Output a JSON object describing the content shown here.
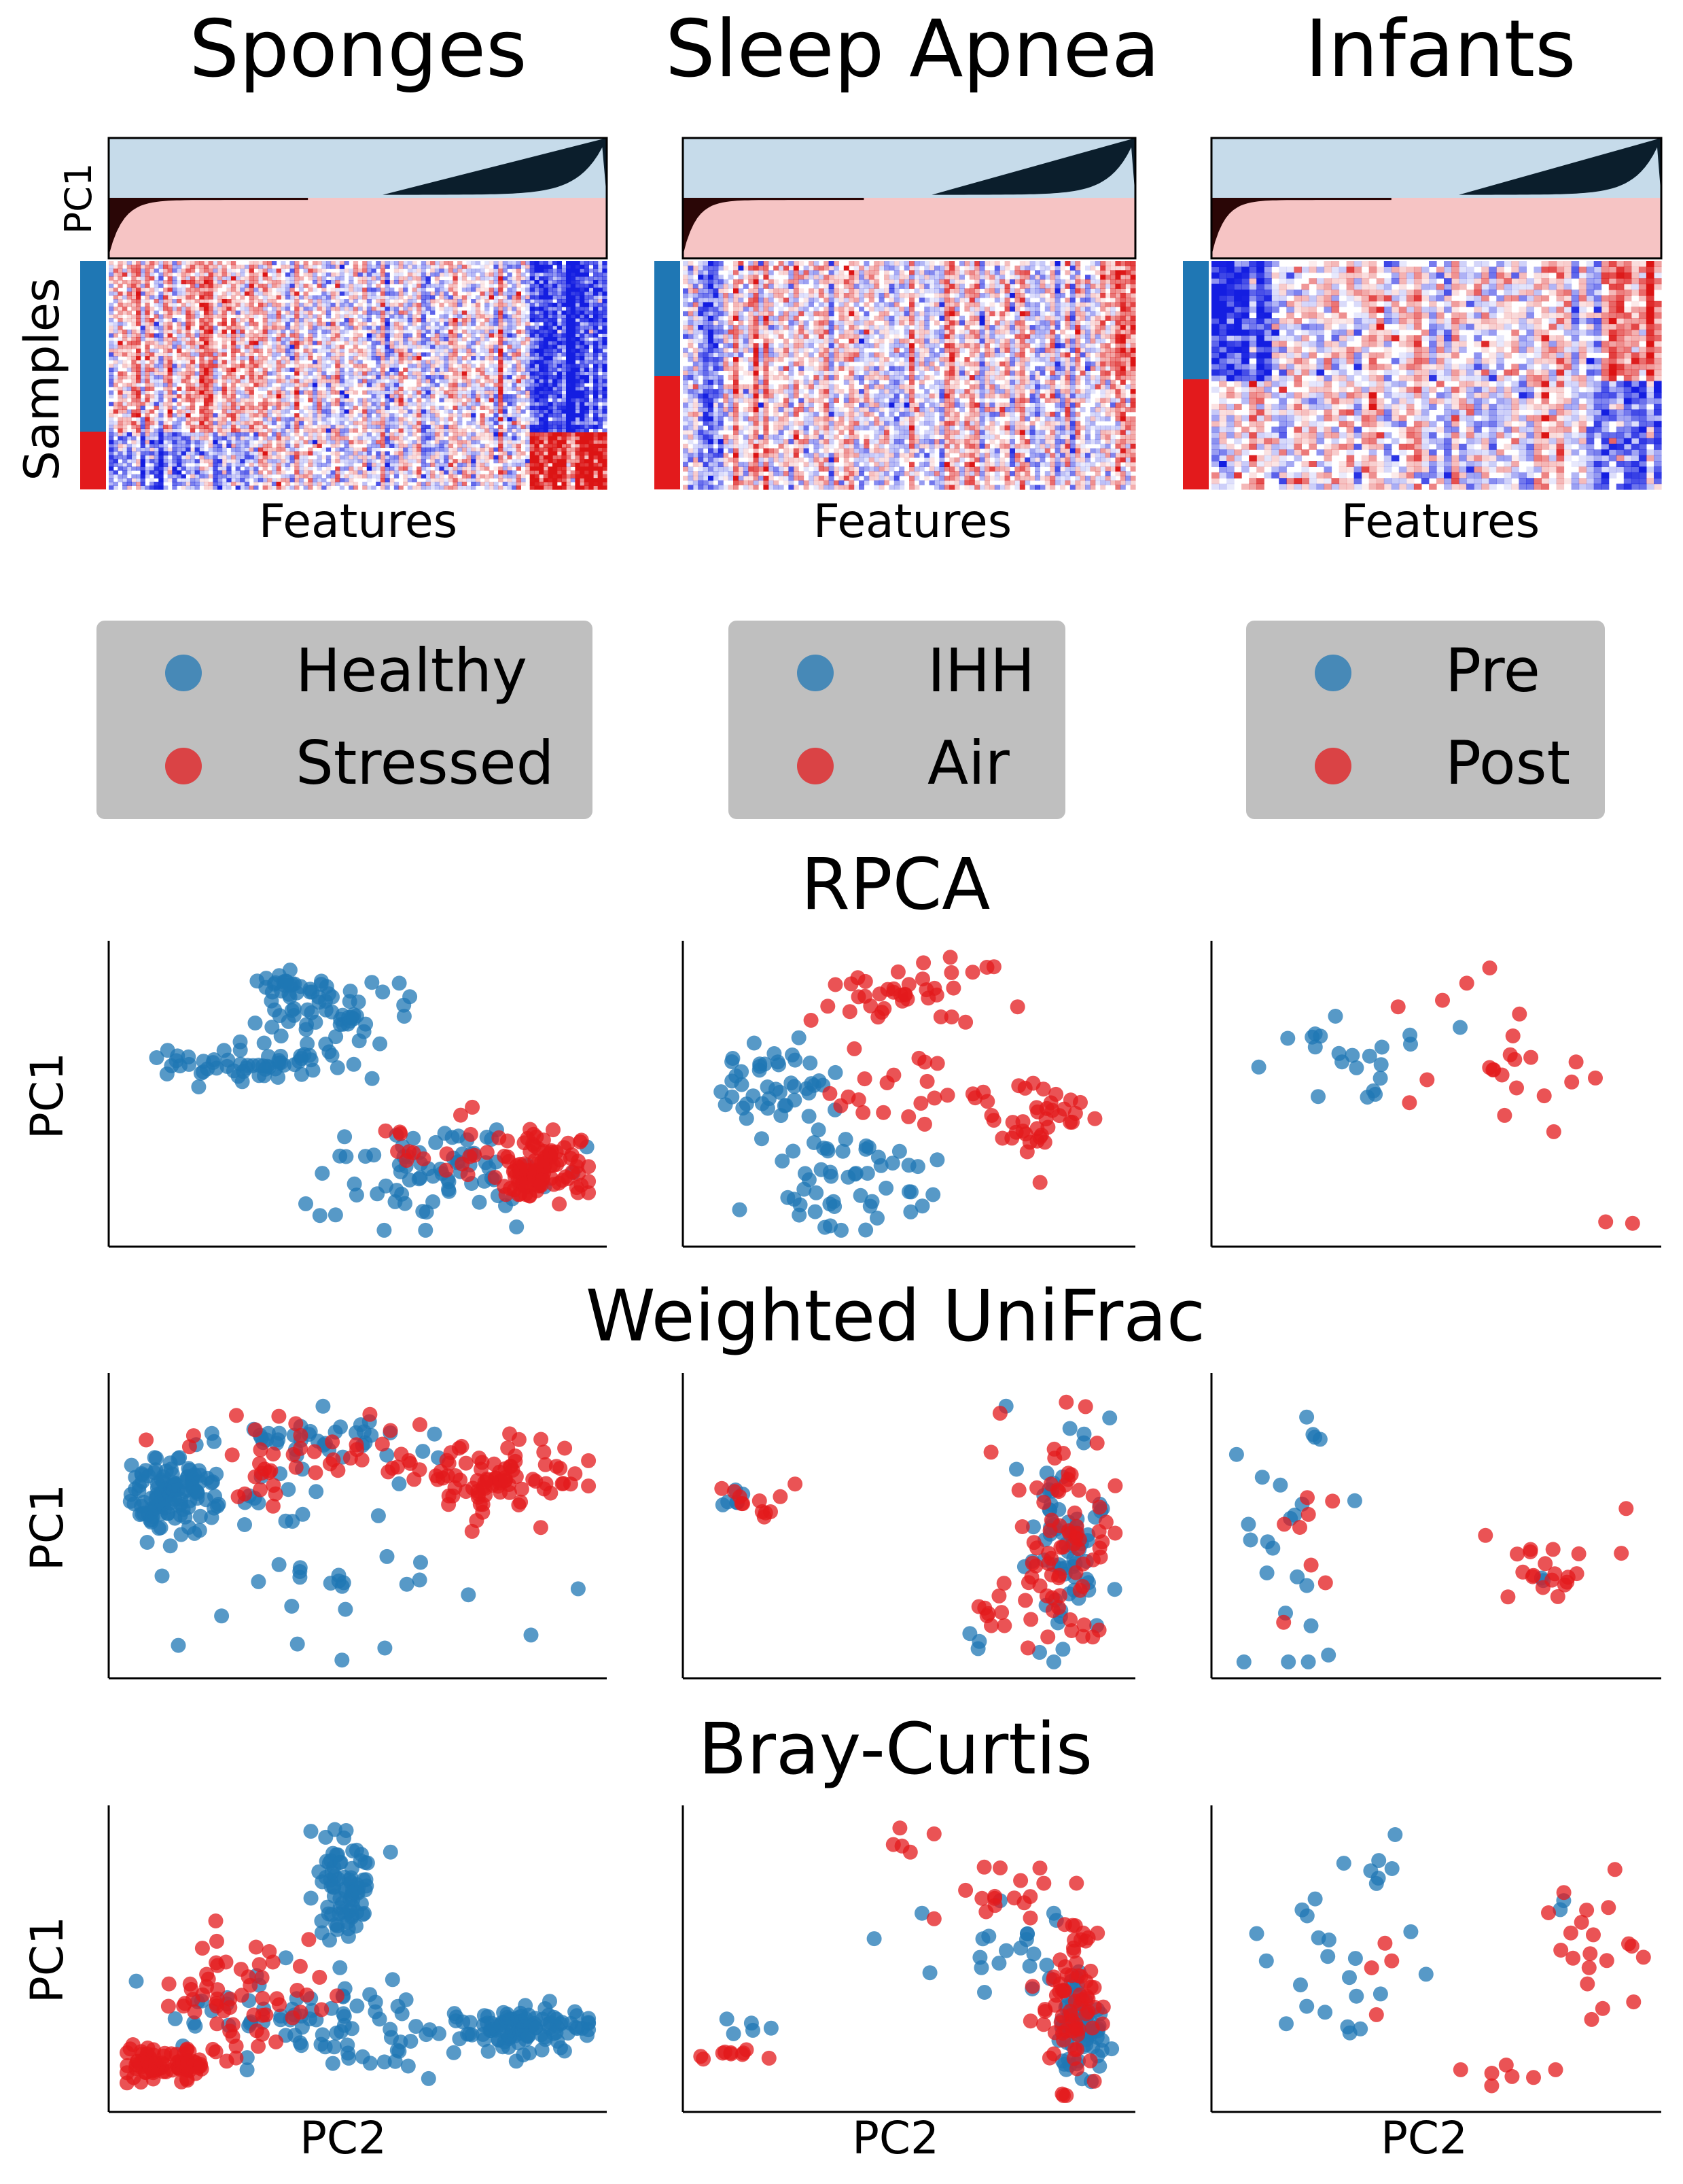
{
  "chart_data": {
    "type": "scatter",
    "colors": {
      "group1": "#1f77b4",
      "group2": "#e31a1c",
      "pc_positive": "#c6dbea",
      "pc_negative": "#f6c4c4",
      "pc_curve_pos": "#0b1e2c",
      "pc_curve_neg": "#2a0606",
      "legend_bg": "#bfbfbf"
    },
    "datasets": [
      {
        "title": "Sponges",
        "legend": [
          "Healthy",
          "Stressed"
        ],
        "heatmap_xlabel": "Features"
      },
      {
        "title": "Sleep Apnea",
        "legend": [
          "IHH",
          "Air"
        ],
        "heatmap_xlabel": "Features"
      },
      {
        "title": "Infants",
        "legend": [
          "Pre",
          "Post"
        ],
        "heatmap_xlabel": "Features"
      }
    ],
    "heatmap_ylabel": "Samples",
    "loading_ylabel": "PC1",
    "row_titles": [
      "RPCA",
      "Weighted UniFrac",
      "Bray-Curtis"
    ],
    "ylabel": "PC1",
    "xlabel": "PC2",
    "x_ticks": "none",
    "y_ticks": "none",
    "grid": false,
    "legend_placement": "between heatmaps and scatter plots, one per column",
    "scatter_point_counts": [
      [
        {
          "group1": 300,
          "group2": 140
        },
        {
          "group1": 110,
          "group2": 100
        },
        {
          "group1": 30,
          "group2": 30
        }
      ],
      [
        {
          "group1": 300,
          "group2": 140
        },
        {
          "group1": 110,
          "group2": 100
        },
        {
          "group1": 30,
          "group2": 30
        }
      ],
      [
        {
          "group1": 300,
          "group2": 140
        },
        {
          "group1": 110,
          "group2": 100
        },
        {
          "group1": 30,
          "group2": 30
        }
      ]
    ]
  }
}
